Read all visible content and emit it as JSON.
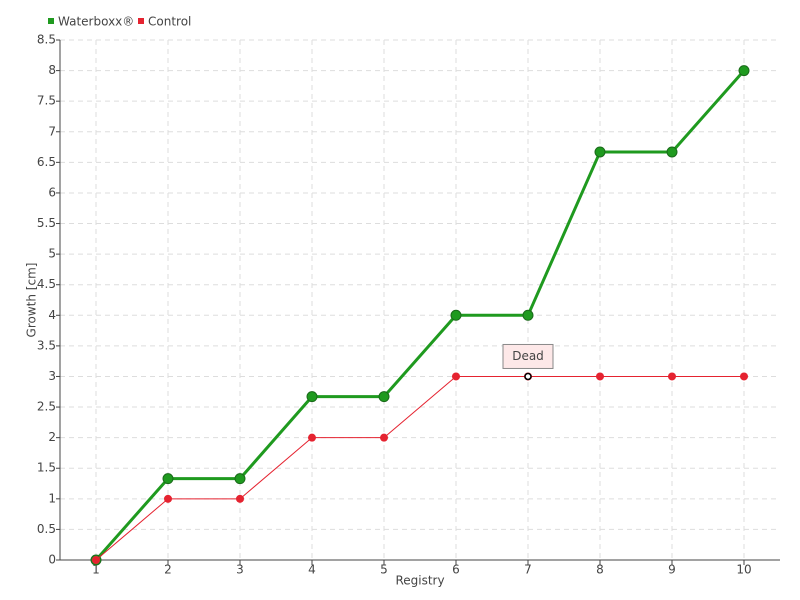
{
  "chart_data": {
    "type": "line",
    "x_label": "Registry",
    "y_label": "Growth [cm]",
    "x": [
      1,
      2,
      3,
      4,
      5,
      6,
      7,
      8,
      9,
      10
    ],
    "xlim": [
      0.5,
      10.5
    ],
    "xticks": [
      1,
      2,
      3,
      4,
      5,
      6,
      7,
      8,
      9,
      10
    ],
    "ylim": [
      0,
      8.5
    ],
    "yticks": [
      0,
      0.5,
      1,
      1.5,
      2,
      2.5,
      3,
      3.5,
      4,
      4.5,
      5,
      5.5,
      6,
      6.5,
      7,
      7.5,
      8,
      8.5
    ],
    "grid": true,
    "legend": "top-left",
    "series": [
      {
        "name": "Waterboxx®",
        "color": "#1f9a1f",
        "values": [
          0,
          1.33,
          1.33,
          2.67,
          2.67,
          4,
          4,
          6.67,
          6.67,
          8
        ]
      },
      {
        "name": "Control",
        "color": "#e52330",
        "values": [
          0,
          1,
          1,
          2,
          2,
          3,
          3,
          3,
          3,
          3
        ]
      }
    ],
    "annotations": [
      {
        "text": "Dead",
        "x": 7,
        "y": 3
      }
    ]
  }
}
